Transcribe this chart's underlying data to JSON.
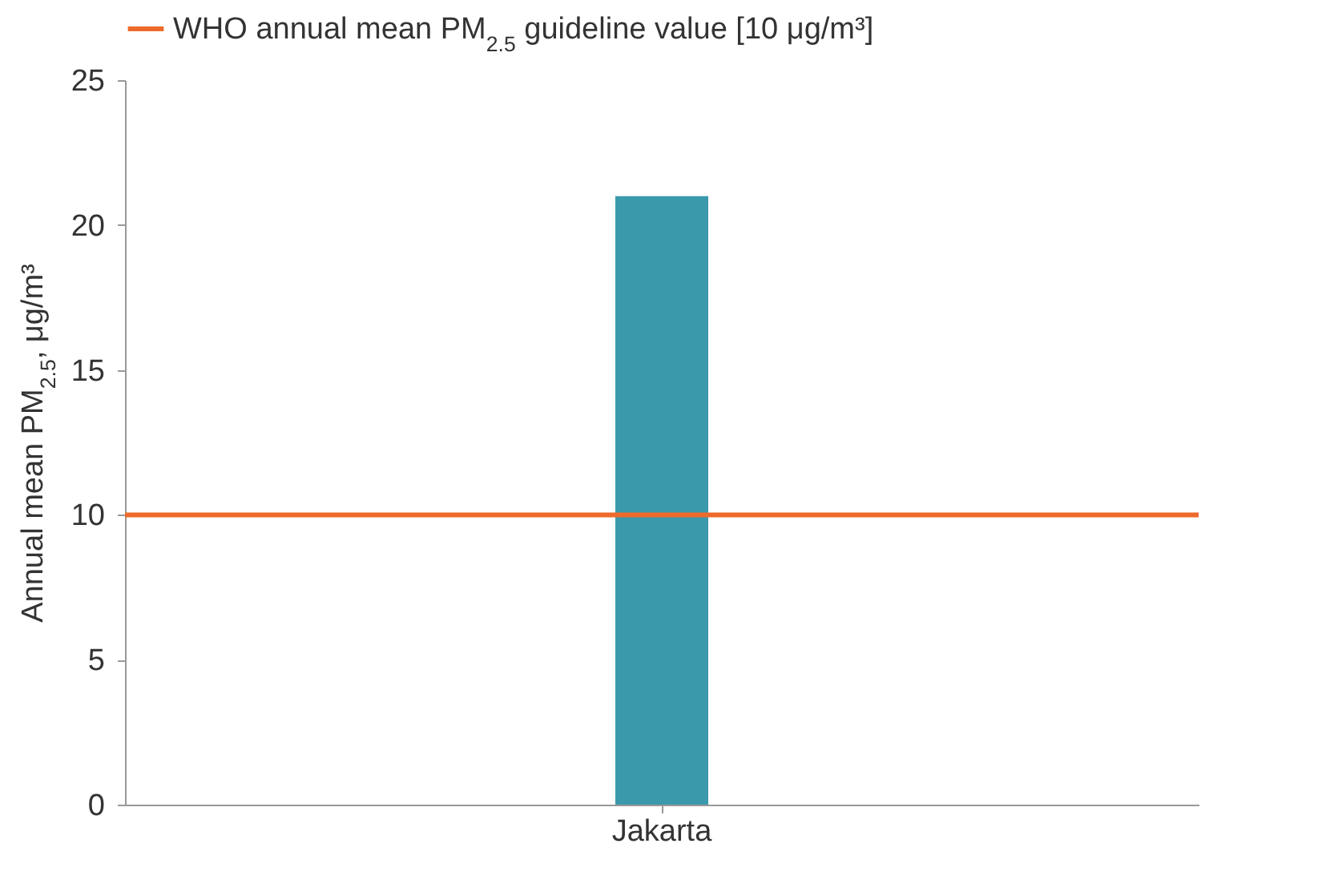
{
  "chart_data": {
    "type": "bar",
    "ylabel": "Annual mean PM$_{2.5}$, μg/m³",
    "categories": [
      "Jakarta"
    ],
    "series": [
      {
        "color": "#3a9aab",
        "values": [
          21
        ]
      }
    ],
    "ylim": [
      0,
      25
    ],
    "yticks": [
      0,
      5,
      10,
      15,
      20,
      25
    ],
    "ref_lines": [
      {
        "axis": "y",
        "value": 10,
        "label": "WHO annual mean PM$_{2.5}$ guideline value [10 μg/m³]",
        "color": "#ee6a2c"
      }
    ],
    "legend": "top left",
    "grid": false
  }
}
